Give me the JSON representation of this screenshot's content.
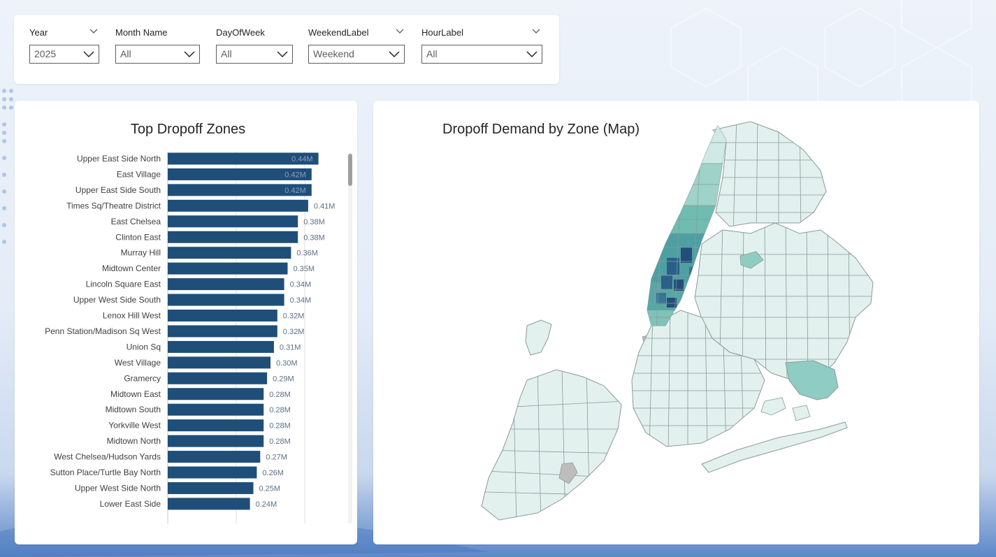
{
  "slicers": [
    {
      "label": "Year",
      "value": "2025"
    },
    {
      "label": "Month Name",
      "value": "All"
    },
    {
      "label": "DayOfWeek",
      "value": "All"
    },
    {
      "label": "WeekendLabel",
      "value": "Weekend"
    },
    {
      "label": "HourLabel",
      "value": "All"
    }
  ],
  "bar_chart": {
    "title": "Top Dropoff Zones"
  },
  "map": {
    "title": "Dropoff Demand by Zone (Map)"
  },
  "colors": {
    "bar": "#1f4e79",
    "label_inside": "#8aa0bb",
    "label_outside": "#5b6f86",
    "map_low": "#e2f1ee",
    "map_mid": "#7cc4bb",
    "map_high": "#2a5f8a",
    "map_null": "#bdbdbd"
  },
  "chart_data": {
    "type": "bar",
    "orientation": "horizontal",
    "title": "Top Dropoff Zones",
    "categories": [
      "Upper East Side North",
      "East Village",
      "Upper East Side South",
      "Times Sq/Theatre District",
      "East Chelsea",
      "Clinton East",
      "Murray Hill",
      "Midtown Center",
      "Lincoln Square East",
      "Upper West Side South",
      "Lenox Hill West",
      "Penn Station/Madison Sq West",
      "Union Sq",
      "West Village",
      "Gramercy",
      "Midtown East",
      "Midtown South",
      "Yorkville West",
      "Midtown North",
      "West Chelsea/Hudson Yards",
      "Sutton Place/Turtle Bay North",
      "Upper West Side North",
      "Lower East Side"
    ],
    "values": [
      0.44,
      0.42,
      0.42,
      0.41,
      0.38,
      0.38,
      0.36,
      0.35,
      0.34,
      0.34,
      0.32,
      0.32,
      0.31,
      0.3,
      0.29,
      0.28,
      0.28,
      0.28,
      0.28,
      0.27,
      0.26,
      0.25,
      0.24
    ],
    "data_labels": [
      "0.44M",
      "0.42M",
      "0.42M",
      "0.41M",
      "0.38M",
      "0.38M",
      "0.36M",
      "0.35M",
      "0.34M",
      "0.34M",
      "0.32M",
      "0.32M",
      "0.31M",
      "0.30M",
      "0.29M",
      "0.28M",
      "0.28M",
      "0.28M",
      "0.28M",
      "0.27M",
      "0.26M",
      "0.25M",
      "0.24M"
    ],
    "units": "M",
    "xlim": [
      0,
      0.5
    ],
    "grid": true
  }
}
